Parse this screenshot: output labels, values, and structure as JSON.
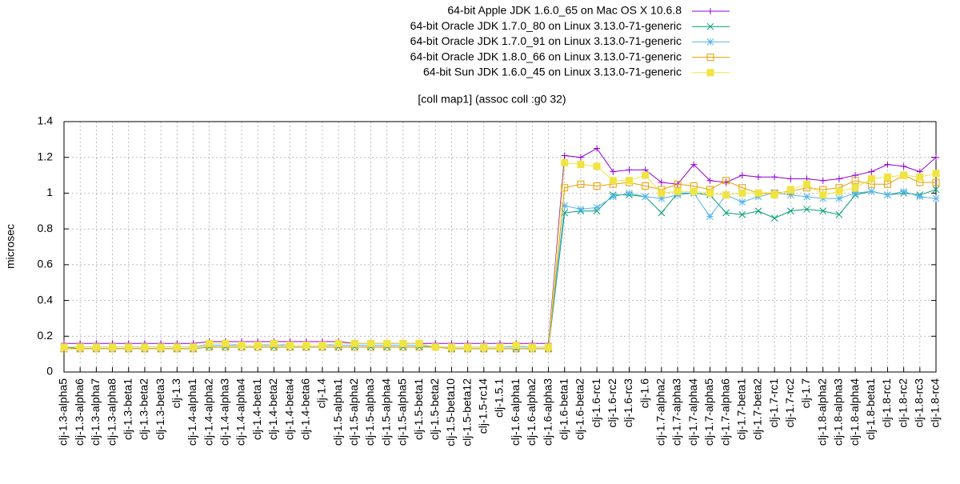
{
  "chart_data": {
    "type": "line",
    "title": "[coll map1] (assoc coll :g0 32)",
    "y_label": "microsec",
    "categories": [
      "clj-1.3-alpha5",
      "clj-1.3-alpha6",
      "clj-1.3-alpha7",
      "clj-1.3-alpha8",
      "clj-1.3-beta1",
      "clj-1.3-beta2",
      "clj-1.3-beta3",
      "clj-1.3",
      "clj-1.4-alpha1",
      "clj-1.4-alpha2",
      "clj-1.4-alpha3",
      "clj-1.4-alpha4",
      "clj-1.4-beta1",
      "clj-1.4-beta2",
      "clj-1.4-beta4",
      "clj-1.4-beta6",
      "clj-1.4",
      "clj-1.5-alpha1",
      "clj-1.5-alpha2",
      "clj-1.5-alpha3",
      "clj-1.5-alpha4",
      "clj-1.5-alpha5",
      "clj-1.5-beta1",
      "clj-1.5-beta2",
      "clj-1.5-beta10",
      "clj-1.5-beta12",
      "clj-1.5-rc14",
      "clj-1.5.1",
      "clj-1.6-alpha1",
      "clj-1.6-alpha2",
      "clj-1.6-alpha3",
      "clj-1.6-beta1",
      "clj-1.6-beta2",
      "clj-1.6-rc1",
      "clj-1.6-rc2",
      "clj-1.6-rc3",
      "clj-1.6",
      "clj-1.7-alpha2",
      "clj-1.7-alpha3",
      "clj-1.7-alpha4",
      "clj-1.7-alpha5",
      "clj-1.7-alpha6",
      "clj-1.7-beta1",
      "clj-1.7-beta2",
      "clj-1.7-rc1",
      "clj-1.7-rc2",
      "clj-1.7",
      "clj-1.8-alpha2",
      "clj-1.8-alpha3",
      "clj-1.8-alpha4",
      "clj-1.8-beta1",
      "clj-1.8-rc1",
      "clj-1.8-rc2",
      "clj-1.8-rc3",
      "clj-1.8-rc4"
    ],
    "series": [
      {
        "name": "64-bit Apple JDK 1.6.0_65 on Mac OS X 10.6.8",
        "color": "#9400d3",
        "marker": "plus",
        "values": [
          0.16,
          0.16,
          0.16,
          0.16,
          0.16,
          0.16,
          0.16,
          0.16,
          0.16,
          0.17,
          0.17,
          0.17,
          0.17,
          0.17,
          0.17,
          0.17,
          0.17,
          0.17,
          0.16,
          0.16,
          0.16,
          0.16,
          0.16,
          0.16,
          0.16,
          0.16,
          0.16,
          0.16,
          0.16,
          0.16,
          0.16,
          1.21,
          1.2,
          1.25,
          1.12,
          1.13,
          1.13,
          1.06,
          1.05,
          1.16,
          1.07,
          1.06,
          1.1,
          1.09,
          1.09,
          1.08,
          1.08,
          1.07,
          1.08,
          1.1,
          1.12,
          1.16,
          1.15,
          1.12,
          1.2
        ]
      },
      {
        "name": "64-bit Oracle JDK 1.7.0_80 on Linux 3.13.0-71-generic",
        "color": "#009e73",
        "marker": "cross",
        "values": [
          0.14,
          0.13,
          0.13,
          0.13,
          0.13,
          0.13,
          0.13,
          0.13,
          0.13,
          0.14,
          0.14,
          0.14,
          0.14,
          0.14,
          0.14,
          0.14,
          0.14,
          0.14,
          0.14,
          0.14,
          0.14,
          0.14,
          0.14,
          0.14,
          0.13,
          0.13,
          0.13,
          0.13,
          0.13,
          0.13,
          0.13,
          0.89,
          0.9,
          0.9,
          0.99,
          0.99,
          0.98,
          0.89,
          1.0,
          1.0,
          0.99,
          0.89,
          0.88,
          0.9,
          0.86,
          0.9,
          0.91,
          0.9,
          0.88,
          0.99,
          1.01,
          0.99,
          1.0,
          0.99,
          1.02
        ]
      },
      {
        "name": "64-bit Oracle JDK 1.7.0_91 on Linux 3.13.0-71-generic",
        "color": "#56b4e9",
        "marker": "star",
        "values": [
          0.14,
          0.14,
          0.14,
          0.14,
          0.14,
          0.14,
          0.14,
          0.14,
          0.14,
          0.15,
          0.15,
          0.15,
          0.15,
          0.15,
          0.15,
          0.15,
          0.15,
          0.15,
          0.15,
          0.15,
          0.15,
          0.15,
          0.15,
          0.14,
          0.14,
          0.14,
          0.14,
          0.14,
          0.14,
          0.14,
          0.14,
          0.93,
          0.91,
          0.92,
          0.98,
          1.0,
          0.98,
          0.97,
          0.99,
          1.0,
          0.87,
          0.99,
          0.95,
          0.98,
          1.0,
          0.99,
          0.98,
          0.97,
          0.97,
          1.0,
          1.01,
          0.99,
          1.01,
          0.98,
          0.97
        ]
      },
      {
        "name": "64-bit Oracle JDK 1.8.0_66 on Linux 3.13.0-71-generic",
        "color": "#e69f00",
        "marker": "square",
        "values": [
          0.13,
          0.13,
          0.13,
          0.13,
          0.13,
          0.13,
          0.13,
          0.13,
          0.13,
          0.14,
          0.14,
          0.14,
          0.14,
          0.14,
          0.14,
          0.14,
          0.14,
          0.14,
          0.14,
          0.14,
          0.14,
          0.14,
          0.14,
          0.14,
          0.13,
          0.13,
          0.13,
          0.13,
          0.13,
          0.13,
          0.13,
          1.03,
          1.05,
          1.04,
          1.05,
          1.06,
          1.04,
          1.02,
          1.05,
          1.04,
          1.02,
          1.07,
          1.03,
          1.0,
          1.0,
          1.01,
          1.03,
          1.02,
          1.03,
          1.07,
          1.05,
          1.05,
          1.1,
          1.06,
          1.06
        ]
      },
      {
        "name": "64-bit Sun JDK 1.6.0_45 on Linux 3.13.0-71-generic",
        "color": "#f0e442",
        "marker": "filled-square",
        "values": [
          0.14,
          0.14,
          0.14,
          0.14,
          0.14,
          0.14,
          0.14,
          0.14,
          0.14,
          0.16,
          0.16,
          0.15,
          0.15,
          0.16,
          0.15,
          0.15,
          0.15,
          0.16,
          0.16,
          0.16,
          0.16,
          0.16,
          0.16,
          0.14,
          0.14,
          0.14,
          0.14,
          0.14,
          0.15,
          0.14,
          0.14,
          1.17,
          1.16,
          1.15,
          1.07,
          1.07,
          1.1,
          1.0,
          1.01,
          1.01,
          1.0,
          0.99,
          1.0,
          1.0,
          0.99,
          1.02,
          1.05,
          0.99,
          1.01,
          1.03,
          1.08,
          1.09,
          1.1,
          1.09,
          1.11
        ]
      }
    ],
    "ylim": [
      0,
      1.4
    ],
    "yticks": [
      0,
      0.2,
      0.4,
      0.6,
      0.8,
      1,
      1.2,
      1.4
    ],
    "grid": true
  }
}
